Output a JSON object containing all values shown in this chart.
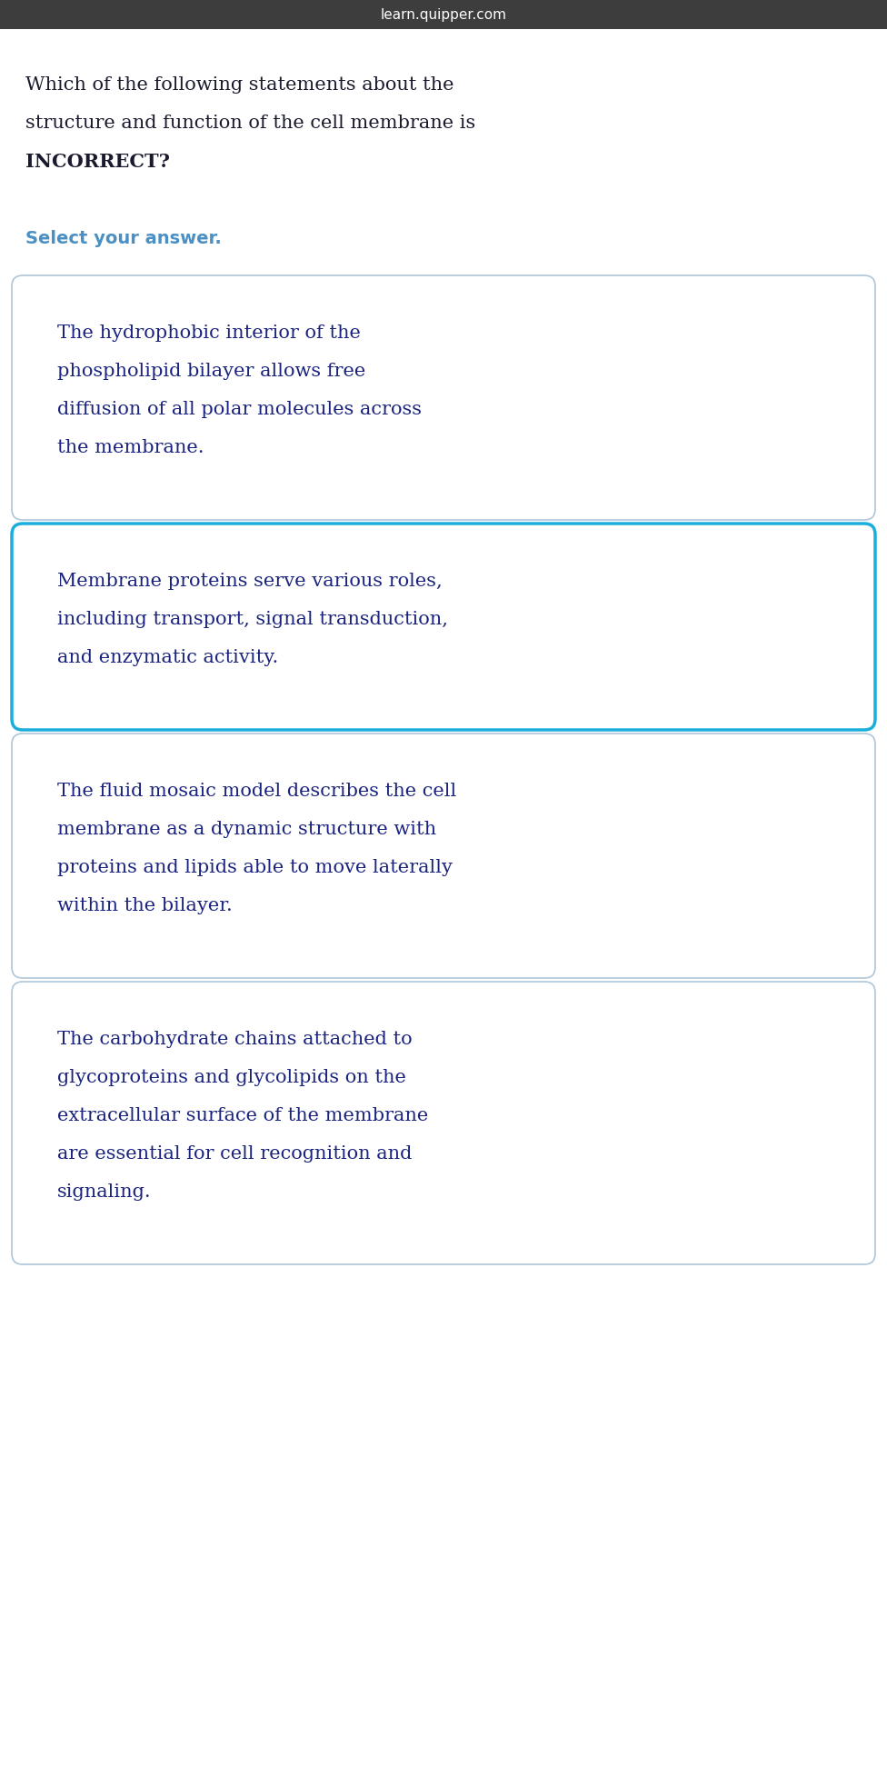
{
  "header_text": "learn.quipper.com",
  "header_bg": "#3d3d3d",
  "header_text_color": "#ffffff",
  "header_font_size": 11,
  "question_line1": "Which of the following statements about the",
  "question_line2": "structure and function of the cell membrane is",
  "question_bold": "INCORRECT?",
  "question_font_size": 15,
  "question_text_color": "#1a1a2e",
  "select_text": "Select your answer.",
  "select_color": "#4a90c4",
  "select_font_size": 14,
  "bg_color": "#ffffff",
  "options": [
    {
      "lines": [
        "The hydrophobic interior of the",
        "phospholipid bilayer allows free",
        "diffusion of all polar molecules across",
        "the membrane."
      ],
      "border_color": "#aec6d8",
      "border_width": 1.2,
      "selected": false,
      "bg": "#ffffff"
    },
    {
      "lines": [
        "Membrane proteins serve various roles,",
        "including transport, signal transduction,",
        "and enzymatic activity."
      ],
      "border_color": "#1aaedc",
      "border_width": 2.5,
      "selected": true,
      "bg": "#ffffff"
    },
    {
      "lines": [
        "The fluid mosaic model describes the cell",
        "membrane as a dynamic structure with",
        "proteins and lipids able to move laterally",
        "within the bilayer."
      ],
      "border_color": "#aec6d8",
      "border_width": 1.2,
      "selected": false,
      "bg": "#ffffff"
    },
    {
      "lines": [
        "The carbohydrate chains attached to",
        "glycoproteins and glycolipids on the",
        "extracellular surface of the membrane",
        "are essential for cell recognition and",
        "signaling."
      ],
      "border_color": "#aec6d8",
      "border_width": 1.2,
      "selected": false,
      "bg": "#ffffff"
    }
  ],
  "option_text_color": "#1a237e",
  "option_font_size": 15
}
